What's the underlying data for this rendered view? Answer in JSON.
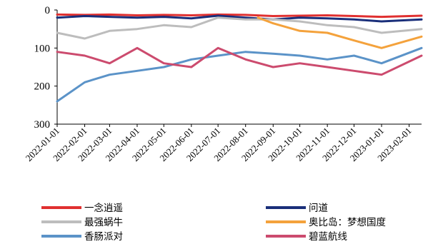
{
  "chart_data": {
    "type": "line",
    "title": "",
    "xlabel": "",
    "ylabel": "",
    "y_reversed": true,
    "ylim": [
      0,
      300
    ],
    "yticks": [
      0,
      100,
      200,
      300
    ],
    "xlim": [
      "2022-01-01",
      "2023-02-15"
    ],
    "xticks": [
      "2022-01-01",
      "2022-02-01",
      "2022-03-01",
      "2022-04-01",
      "2022-05-01",
      "2022-06-01",
      "2022-07-01",
      "2022-08-01",
      "2022-09-01",
      "2022-10-01",
      "2022-11-01",
      "2022-12-01",
      "2023-01-01",
      "2023-02-01"
    ],
    "grid": false,
    "legend_position": "bottom",
    "series": [
      {
        "name": "一念逍遥",
        "color": "#e03030",
        "x": [
          "2022-01-01",
          "2022-02-01",
          "2022-03-01",
          "2022-04-01",
          "2022-05-01",
          "2022-06-01",
          "2022-07-01",
          "2022-08-01",
          "2022-09-01",
          "2022-10-01",
          "2022-11-01",
          "2022-12-01",
          "2023-01-01",
          "2023-02-15"
        ],
        "y": [
          12,
          13,
          12,
          14,
          13,
          14,
          12,
          13,
          16,
          15,
          14,
          16,
          18,
          15
        ]
      },
      {
        "name": "问道",
        "color": "#1a2f7a",
        "x": [
          "2022-01-01",
          "2022-02-01",
          "2022-03-01",
          "2022-04-01",
          "2022-05-01",
          "2022-06-01",
          "2022-07-01",
          "2022-08-01",
          "2022-09-01",
          "2022-10-01",
          "2022-11-01",
          "2022-12-01",
          "2023-01-01",
          "2023-02-15"
        ],
        "y": [
          20,
          16,
          18,
          20,
          18,
          22,
          15,
          20,
          25,
          20,
          22,
          25,
          30,
          25
        ]
      },
      {
        "name": "最强蜗牛",
        "color": "#bdbdbd",
        "x": [
          "2022-01-01",
          "2022-02-01",
          "2022-03-01",
          "2022-04-01",
          "2022-05-01",
          "2022-06-01",
          "2022-07-01",
          "2022-08-01",
          "2022-09-01",
          "2022-10-01",
          "2022-11-01",
          "2022-12-01",
          "2023-01-01",
          "2023-02-15"
        ],
        "y": [
          60,
          75,
          55,
          50,
          40,
          45,
          20,
          25,
          25,
          30,
          40,
          45,
          60,
          50
        ]
      },
      {
        "name": "奥比岛：梦想国度",
        "color": "#f4a23c",
        "x": [
          "2022-08-15",
          "2022-09-01",
          "2022-10-01",
          "2022-11-01",
          "2022-12-01",
          "2023-01-01",
          "2023-02-15"
        ],
        "y": [
          20,
          35,
          55,
          60,
          80,
          100,
          70
        ]
      },
      {
        "name": "香肠派对",
        "color": "#5b93c8",
        "x": [
          "2022-01-01",
          "2022-02-01",
          "2022-03-01",
          "2022-04-01",
          "2022-05-01",
          "2022-06-01",
          "2022-07-01",
          "2022-08-01",
          "2022-09-01",
          "2022-10-01",
          "2022-11-01",
          "2022-12-01",
          "2023-01-01",
          "2023-02-15"
        ],
        "y": [
          240,
          190,
          170,
          160,
          150,
          130,
          120,
          110,
          115,
          120,
          130,
          120,
          140,
          100
        ]
      },
      {
        "name": "碧蓝航线",
        "color": "#cc4b6e",
        "x": [
          "2022-01-01",
          "2022-02-01",
          "2022-03-01",
          "2022-04-01",
          "2022-05-01",
          "2022-06-01",
          "2022-07-01",
          "2022-08-01",
          "2022-09-01",
          "2022-10-01",
          "2022-11-01",
          "2022-12-01",
          "2023-01-01",
          "2023-02-15"
        ],
        "y": [
          110,
          120,
          140,
          100,
          140,
          150,
          100,
          130,
          150,
          140,
          150,
          160,
          170,
          120
        ]
      }
    ]
  }
}
